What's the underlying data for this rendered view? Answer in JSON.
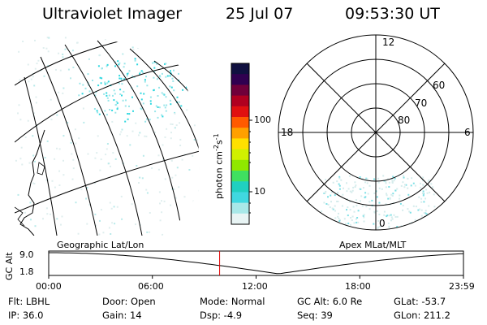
{
  "header": {
    "instrument": "Ultraviolet Imager",
    "date": "25 Jul 07",
    "time": "09:53:30 UT"
  },
  "colorbar": {
    "unit_label": "photon cm",
    "unit_exp1": "-2",
    "unit_s": "s",
    "unit_exp2": "-1",
    "ticks": [
      "100",
      "10"
    ],
    "colors": [
      "#101040",
      "#300050",
      "#70003a",
      "#b00020",
      "#e01010",
      "#ff5a00",
      "#ffa000",
      "#ffe000",
      "#d0f000",
      "#90e800",
      "#40e060",
      "#20d0c0",
      "#40d8e0",
      "#a8e8e8",
      "#e8f4f4"
    ]
  },
  "polar_plot": {
    "mlt_labels": {
      "top": "12",
      "left": "18",
      "right": "6",
      "bottom": "0"
    },
    "lat_labels": [
      "60",
      "70",
      "80"
    ]
  },
  "timeline": {
    "left_title": "Geographic Lat/Lon",
    "right_title": "Apex MLat/MLT",
    "axis_title": "GC Alt",
    "y_ticks": [
      "9.0",
      "1.8"
    ],
    "x_ticks": [
      "00:00",
      "06:00",
      "12:00",
      "18:00",
      "23:59"
    ],
    "current_hour": 9.89
  },
  "info": {
    "flt": "Flt: LBHL",
    "ip": "IP: 36.0",
    "door": "Door: Open",
    "gain": "Gain: 14",
    "mode": "Mode: Normal",
    "dsp": "Dsp:   -4.9",
    "gcalt": "GC Alt: 6.0 Re",
    "seq": "Seq: 39",
    "glat": "GLat: -53.7",
    "glon": "GLon: 211.2"
  },
  "colors": {
    "marker": "#e00000",
    "emission": "#30d8e0"
  }
}
